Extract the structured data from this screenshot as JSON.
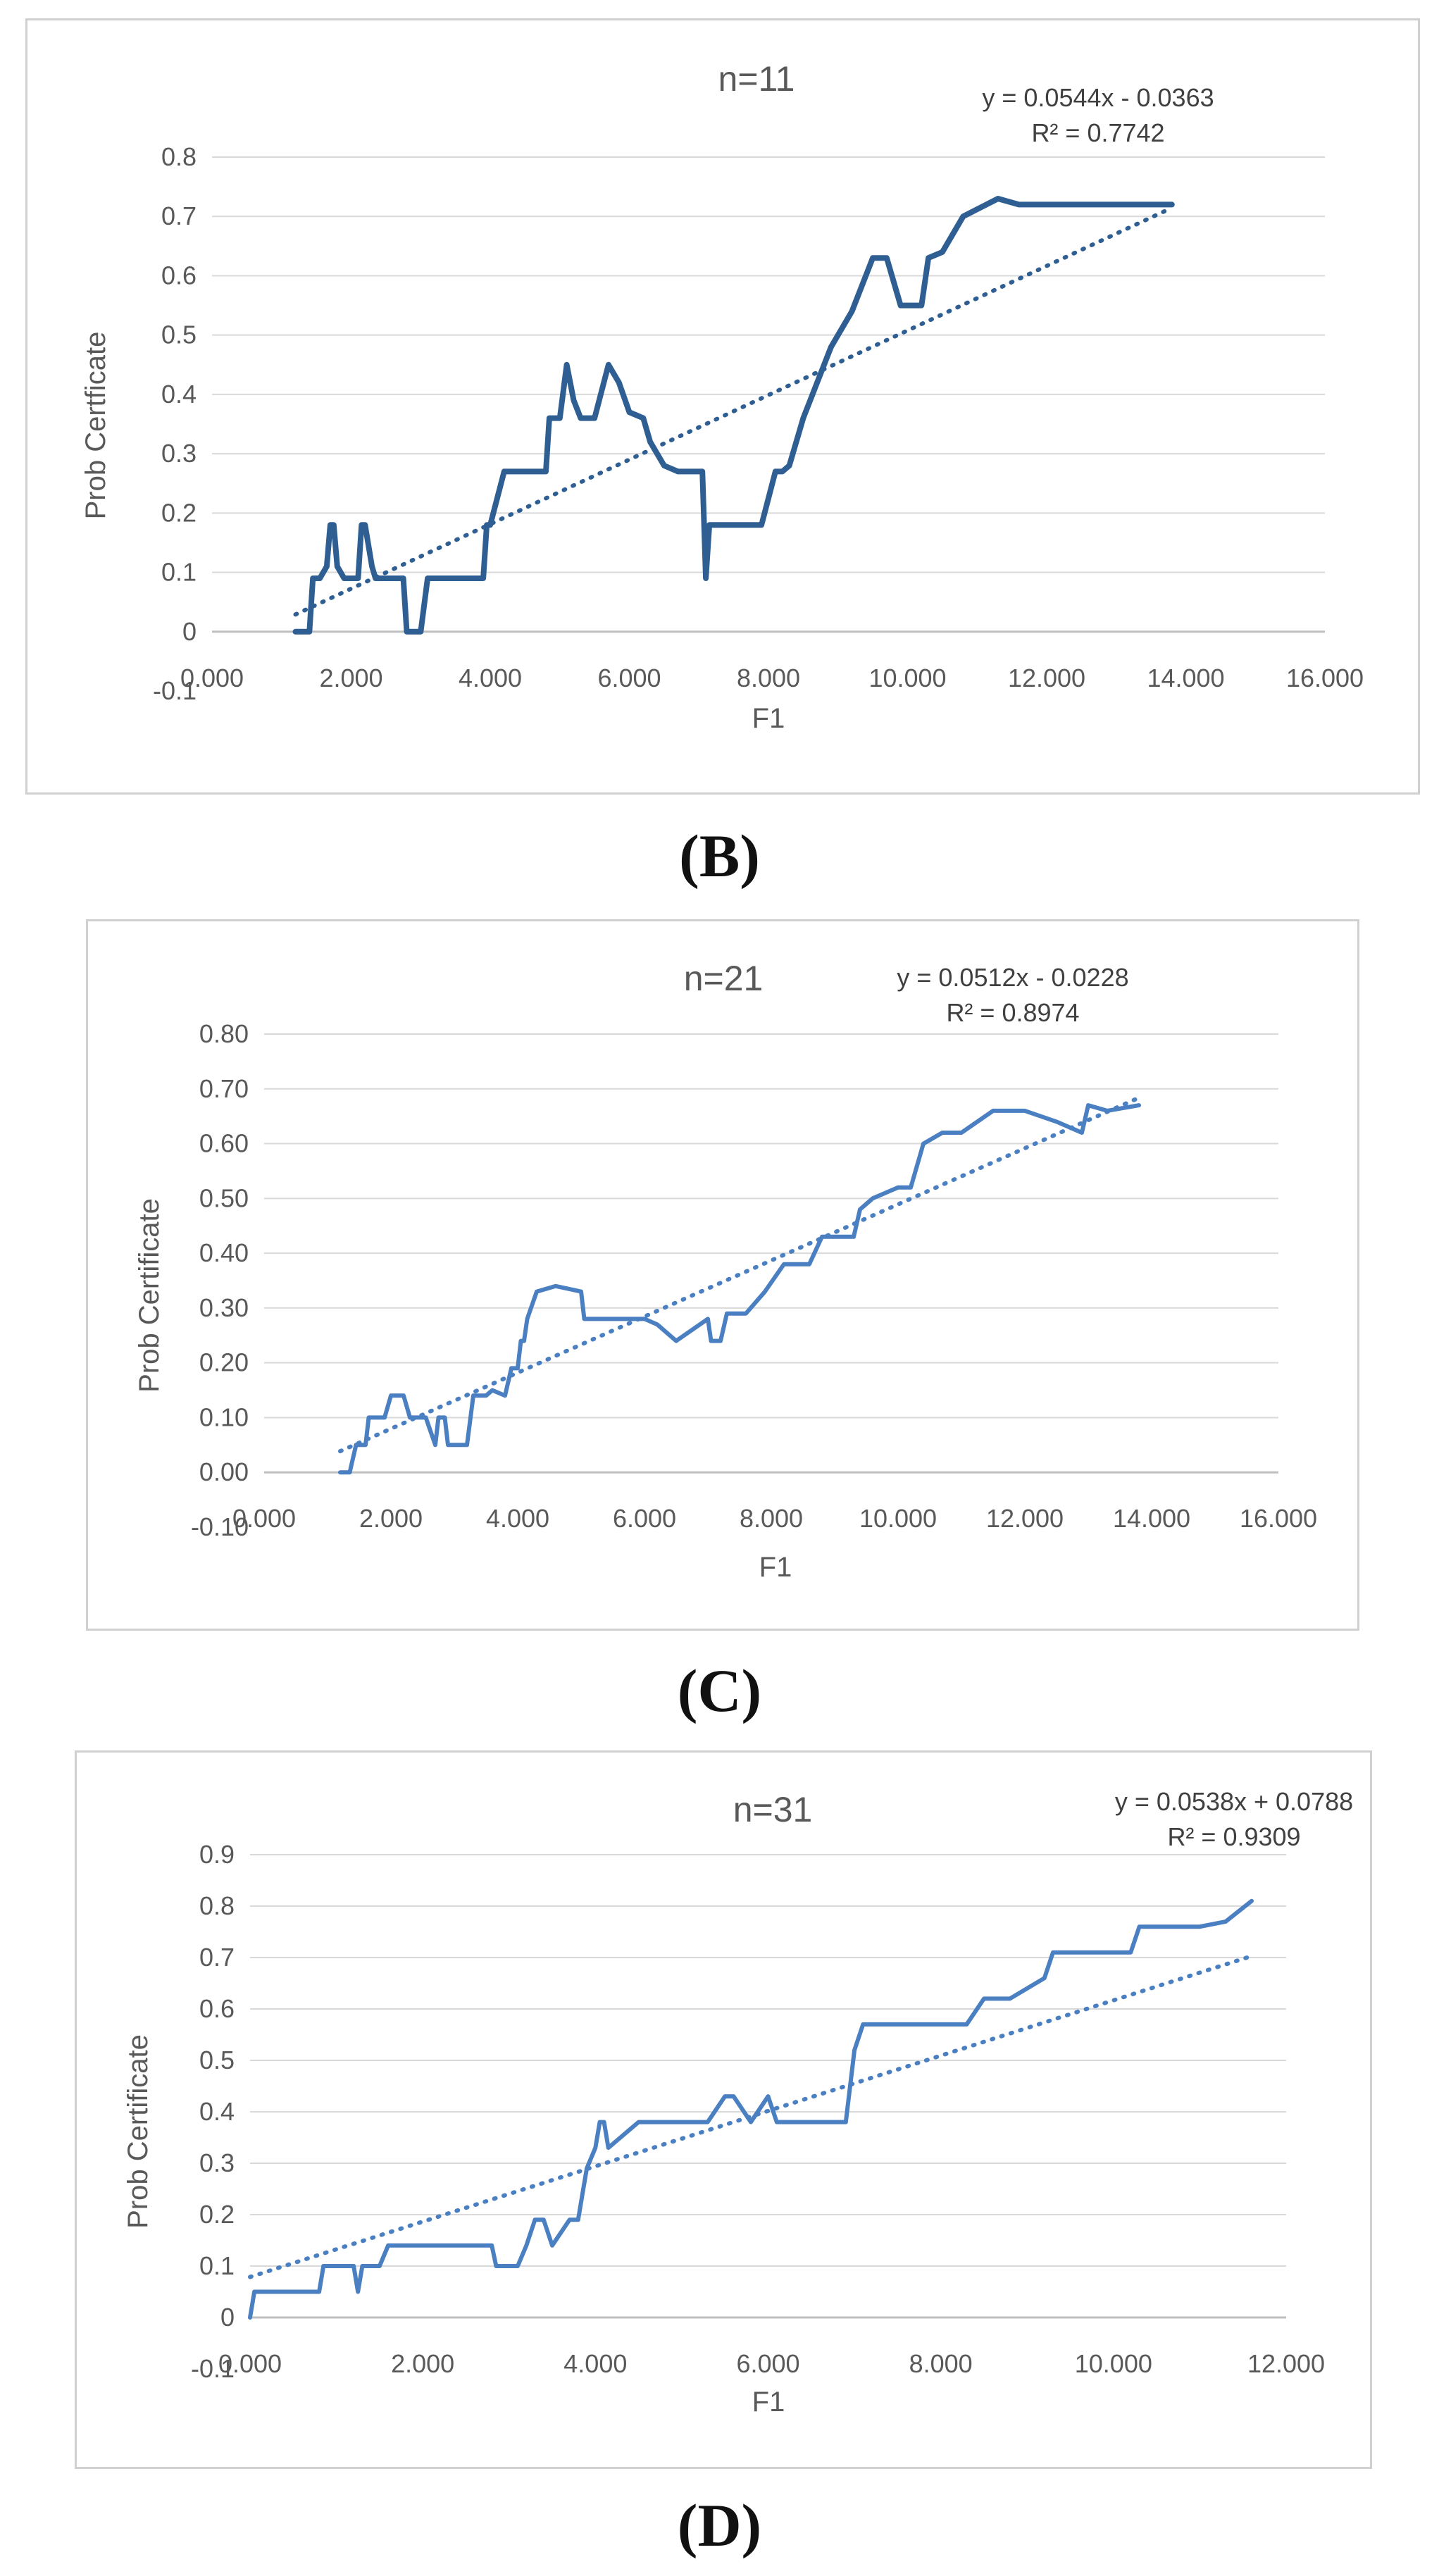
{
  "colors": {
    "line_dark": "#2f5f92",
    "line_light": "#4a7fc1",
    "grid": "#d9d9d9",
    "text": "#595959"
  },
  "labels": {
    "B": "B",
    "C": "C",
    "D": "D"
  },
  "chart_data": [
    {
      "id": "B",
      "type": "line",
      "title": "n=11",
      "xlabel": "F1",
      "ylabel": "Prob Certficate",
      "xlim": [
        0,
        16
      ],
      "ylim": [
        -0.1,
        0.8
      ],
      "x_ticks": [
        "0.000",
        "2.000",
        "4.000",
        "6.000",
        "8.000",
        "10.000",
        "12.000",
        "14.000",
        "16.000"
      ],
      "y_ticks": [
        "-0.1",
        "0",
        "0.1",
        "0.2",
        "0.3",
        "0.4",
        "0.5",
        "0.6",
        "0.7",
        "0.8"
      ],
      "equation": "y = 0.0544x - 0.0363",
      "r2_label": "R² = 0.7742",
      "trendline": {
        "slope": 0.0544,
        "intercept": -0.0363,
        "x_range": [
          1.2,
          13.8
        ]
      },
      "series": [
        {
          "x": [
            1.2,
            1.4,
            1.45,
            1.55,
            1.65,
            1.7,
            1.75,
            1.8,
            1.9,
            1.95,
            2.1,
            2.15,
            2.2,
            2.3,
            2.35,
            2.4,
            2.6,
            2.75,
            2.8,
            2.85,
            3.0,
            3.1,
            3.5,
            3.9,
            3.95,
            4.0,
            4.2,
            4.5,
            4.8,
            4.85,
            5.0,
            5.1,
            5.2,
            5.3,
            5.5,
            5.7,
            5.85,
            6.0,
            6.2,
            6.3,
            6.5,
            6.7,
            6.9,
            7.05,
            7.1,
            7.15,
            7.3,
            7.6,
            7.9,
            8.1,
            8.2,
            8.3,
            8.5,
            8.8,
            8.9,
            9.2,
            9.5,
            9.7,
            9.9,
            10.2,
            10.3,
            10.5,
            10.8,
            11.3,
            11.6,
            12.5,
            13.8
          ],
          "y": [
            0.0,
            0.0,
            0.09,
            0.09,
            0.11,
            0.18,
            0.18,
            0.11,
            0.09,
            0.09,
            0.09,
            0.18,
            0.18,
            0.11,
            0.09,
            0.09,
            0.09,
            0.09,
            0.0,
            0.0,
            0.0,
            0.09,
            0.09,
            0.09,
            0.18,
            0.18,
            0.27,
            0.27,
            0.27,
            0.36,
            0.36,
            0.45,
            0.39,
            0.36,
            0.36,
            0.45,
            0.42,
            0.37,
            0.36,
            0.32,
            0.28,
            0.27,
            0.27,
            0.27,
            0.09,
            0.18,
            0.18,
            0.18,
            0.18,
            0.27,
            0.27,
            0.28,
            0.36,
            0.45,
            0.48,
            0.54,
            0.63,
            0.63,
            0.55,
            0.55,
            0.63,
            0.64,
            0.7,
            0.73,
            0.72,
            0.72,
            0.72
          ]
        }
      ]
    },
    {
      "id": "C",
      "type": "line",
      "title": "n=21",
      "xlabel": "F1",
      "ylabel": "Prob Certificate",
      "xlim": [
        0,
        16
      ],
      "ylim": [
        -0.1,
        0.8
      ],
      "x_ticks": [
        "0.000",
        "2.000",
        "4.000",
        "6.000",
        "8.000",
        "10.000",
        "12.000",
        "14.000",
        "16.000"
      ],
      "y_ticks": [
        "-0.10",
        "0.00",
        "0.10",
        "0.20",
        "0.30",
        "0.40",
        "0.50",
        "0.60",
        "0.70",
        "0.80"
      ],
      "equation": "y = 0.0512x - 0.0228",
      "r2_label": "R² = 0.8974",
      "trendline": {
        "slope": 0.0512,
        "intercept": -0.0228,
        "x_range": [
          1.2,
          13.8
        ]
      },
      "series": [
        {
          "x": [
            1.2,
            1.35,
            1.45,
            1.6,
            1.65,
            1.9,
            2.0,
            2.2,
            2.3,
            2.55,
            2.7,
            2.75,
            2.85,
            2.9,
            3.2,
            3.3,
            3.5,
            3.6,
            3.8,
            3.9,
            4.0,
            4.05,
            4.1,
            4.15,
            4.3,
            4.6,
            5.0,
            5.05,
            5.5,
            6.0,
            6.2,
            6.5,
            7.0,
            7.05,
            7.2,
            7.3,
            7.6,
            7.9,
            8.2,
            8.6,
            8.8,
            9.0,
            9.3,
            9.4,
            9.6,
            10.0,
            10.2,
            10.4,
            10.7,
            11.0,
            11.5,
            12.0,
            12.5,
            12.9,
            13.0,
            13.3,
            13.8
          ],
          "y": [
            0.0,
            0.0,
            0.05,
            0.05,
            0.1,
            0.1,
            0.14,
            0.14,
            0.1,
            0.1,
            0.05,
            0.1,
            0.1,
            0.05,
            0.05,
            0.14,
            0.14,
            0.15,
            0.14,
            0.19,
            0.19,
            0.24,
            0.24,
            0.28,
            0.33,
            0.34,
            0.33,
            0.28,
            0.28,
            0.28,
            0.27,
            0.24,
            0.28,
            0.24,
            0.24,
            0.29,
            0.29,
            0.33,
            0.38,
            0.38,
            0.43,
            0.43,
            0.43,
            0.48,
            0.5,
            0.52,
            0.52,
            0.6,
            0.62,
            0.62,
            0.66,
            0.66,
            0.64,
            0.62,
            0.67,
            0.66,
            0.67
          ]
        }
      ]
    },
    {
      "id": "D",
      "type": "line",
      "title": "n=31",
      "xlabel": "F1",
      "ylabel": "Prob Certificate",
      "xlim": [
        0,
        12
      ],
      "ylim": [
        -0.1,
        0.9
      ],
      "x_ticks": [
        "0.000",
        "2.000",
        "4.000",
        "6.000",
        "8.000",
        "10.000",
        "12.000"
      ],
      "y_ticks": [
        "-0.1",
        "0",
        "0.1",
        "0.2",
        "0.3",
        "0.4",
        "0.5",
        "0.6",
        "0.7",
        "0.8",
        "0.9"
      ],
      "equation": "y = 0.0538x + 0.0788",
      "r2_label": "R² = 0.9309",
      "trendline": {
        "slope": 0.0538,
        "intercept": 0.0788,
        "x_range": [
          0.0,
          11.6
        ]
      },
      "series": [
        {
          "x": [
            0.0,
            0.05,
            0.2,
            0.8,
            0.85,
            1.0,
            1.1,
            1.2,
            1.25,
            1.3,
            1.5,
            1.6,
            2.0,
            2.5,
            2.8,
            2.85,
            3.0,
            3.1,
            3.2,
            3.3,
            3.4,
            3.5,
            3.7,
            3.8,
            3.85,
            3.9,
            4.0,
            4.05,
            4.1,
            4.15,
            4.5,
            5.0,
            5.3,
            5.5,
            5.6,
            5.8,
            6.0,
            6.1,
            6.5,
            6.9,
            7.0,
            7.1,
            7.3,
            8.0,
            8.3,
            8.5,
            8.8,
            9.2,
            9.3,
            9.5,
            10.0,
            10.2,
            10.3,
            10.6,
            11.0,
            11.3,
            11.6
          ],
          "y": [
            0.0,
            0.05,
            0.05,
            0.05,
            0.1,
            0.1,
            0.1,
            0.1,
            0.05,
            0.1,
            0.1,
            0.14,
            0.14,
            0.14,
            0.14,
            0.1,
            0.1,
            0.1,
            0.14,
            0.19,
            0.19,
            0.14,
            0.19,
            0.19,
            0.24,
            0.29,
            0.33,
            0.38,
            0.38,
            0.33,
            0.38,
            0.38,
            0.38,
            0.43,
            0.43,
            0.38,
            0.43,
            0.38,
            0.38,
            0.38,
            0.52,
            0.57,
            0.57,
            0.57,
            0.57,
            0.62,
            0.62,
            0.66,
            0.71,
            0.71,
            0.71,
            0.71,
            0.76,
            0.76,
            0.76,
            0.77,
            0.81
          ]
        }
      ]
    }
  ]
}
